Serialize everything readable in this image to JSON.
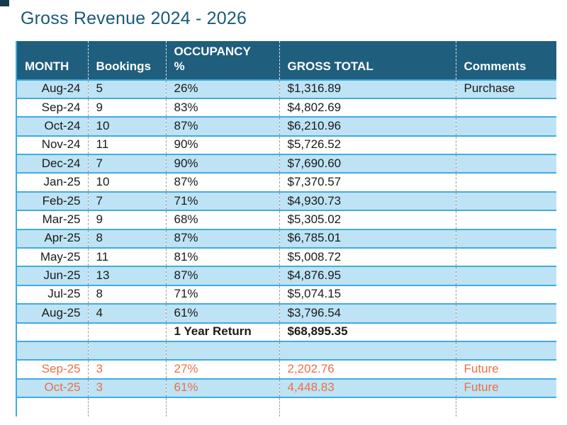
{
  "title": "Gross Revenue 2024 - 2026",
  "colors": {
    "header_bg": "#1F5E7D",
    "alt_row_blue": "#BEE3F5",
    "grid_blue": "#41ABDE",
    "future_orange": "#EE6F44",
    "title_teal": "#1B5A78"
  },
  "table": {
    "columns": [
      {
        "label": "MONTH"
      },
      {
        "label": "Bookings"
      },
      {
        "label": "OCCUPANCY\n%"
      },
      {
        "label": "GROSS TOTAL"
      },
      {
        "label": "Comments"
      }
    ],
    "rows": [
      {
        "month": "Aug-24",
        "bookings": "5",
        "occupancy": "26%",
        "gross_total": "$1,316.89",
        "comments": "Purchase",
        "shade": "blue",
        "variant": ""
      },
      {
        "month": "Sep-24",
        "bookings": "9",
        "occupancy": "83%",
        "gross_total": "$4,802.69",
        "comments": "",
        "shade": "white",
        "variant": ""
      },
      {
        "month": "Oct-24",
        "bookings": "10",
        "occupancy": "87%",
        "gross_total": "$6,210.96",
        "comments": "",
        "shade": "blue",
        "variant": ""
      },
      {
        "month": "Nov-24",
        "bookings": "11",
        "occupancy": "90%",
        "gross_total": "$5,726.52",
        "comments": "",
        "shade": "white",
        "variant": ""
      },
      {
        "month": "Dec-24",
        "bookings": "7",
        "occupancy": "90%",
        "gross_total": "$7,690.60",
        "comments": "",
        "shade": "blue",
        "variant": ""
      },
      {
        "month": "Jan-25",
        "bookings": "10",
        "occupancy": "87%",
        "gross_total": "$7,370.57",
        "comments": "",
        "shade": "white",
        "variant": ""
      },
      {
        "month": "Feb-25",
        "bookings": "7",
        "occupancy": "71%",
        "gross_total": "$4,930.73",
        "comments": "",
        "shade": "blue",
        "variant": ""
      },
      {
        "month": "Mar-25",
        "bookings": "9",
        "occupancy": "68%",
        "gross_total": "$5,305.02",
        "comments": "",
        "shade": "white",
        "variant": ""
      },
      {
        "month": "Apr-25",
        "bookings": "8",
        "occupancy": "87%",
        "gross_total": "$6,785.01",
        "comments": "",
        "shade": "blue",
        "variant": ""
      },
      {
        "month": "May-25",
        "bookings": "11",
        "occupancy": "81%",
        "gross_total": "$5,008.72",
        "comments": "",
        "shade": "white",
        "variant": ""
      },
      {
        "month": "Jun-25",
        "bookings": "13",
        "occupancy": "87%",
        "gross_total": "$4,876.95",
        "comments": "",
        "shade": "blue",
        "variant": ""
      },
      {
        "month": "Jul-25",
        "bookings": "8",
        "occupancy": "71%",
        "gross_total": "$5,074.15",
        "comments": "",
        "shade": "white",
        "variant": ""
      },
      {
        "month": "Aug-25",
        "bookings": "4",
        "occupancy": "61%",
        "gross_total": "$3,796.54",
        "comments": "",
        "shade": "blue",
        "variant": ""
      },
      {
        "month": "",
        "bookings": "",
        "occupancy": "1 Year Return",
        "gross_total": "$68,895.35",
        "comments": "",
        "shade": "white",
        "variant": "total"
      },
      {
        "month": "",
        "bookings": "",
        "occupancy": "",
        "gross_total": "",
        "comments": "",
        "shade": "blue",
        "variant": "spacer"
      },
      {
        "month": "Sep-25",
        "bookings": "3",
        "occupancy": "27%",
        "gross_total": "2,202.76",
        "comments": "Future",
        "shade": "white",
        "variant": "future"
      },
      {
        "month": "Oct-25",
        "bookings": "3",
        "occupancy": "61%",
        "gross_total": "4,448.83",
        "comments": "Future",
        "shade": "blue",
        "variant": "future"
      },
      {
        "month": "",
        "bookings": "",
        "occupancy": "",
        "gross_total": "",
        "comments": "",
        "shade": "white",
        "variant": "partial"
      }
    ]
  }
}
